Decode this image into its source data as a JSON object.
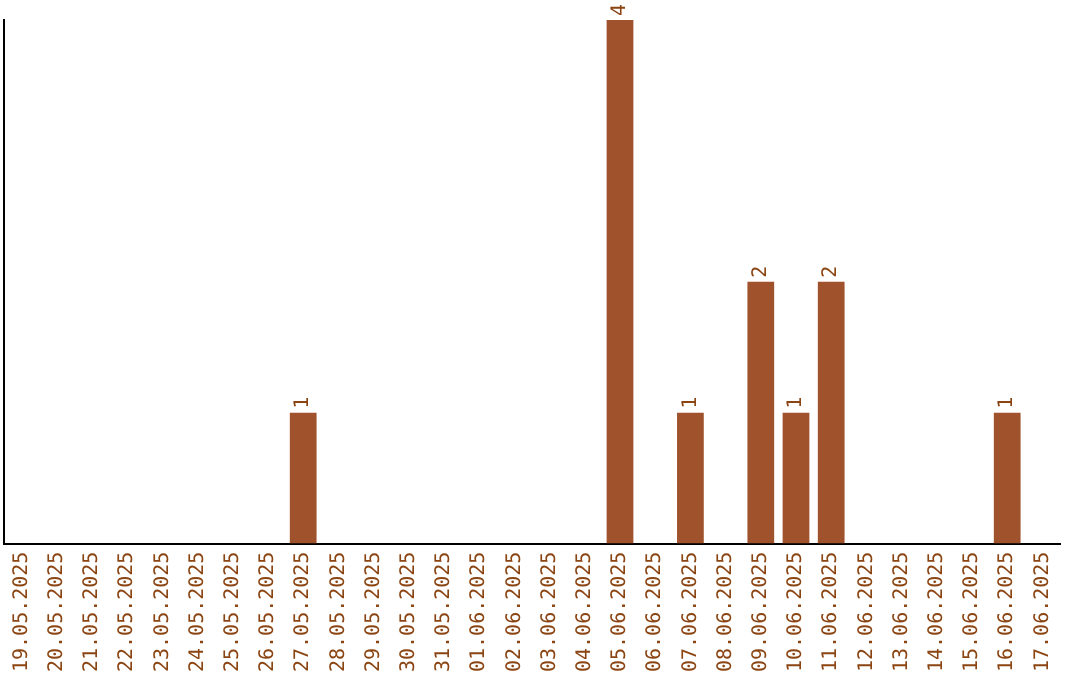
{
  "chart_data": {
    "type": "bar",
    "categories": [
      "19.05.2025",
      "20.05.2025",
      "21.05.2025",
      "22.05.2025",
      "23.05.2025",
      "24.05.2025",
      "25.05.2025",
      "26.05.2025",
      "27.05.2025",
      "28.05.2025",
      "29.05.2025",
      "30.05.2025",
      "31.05.2025",
      "01.06.2025",
      "02.06.2025",
      "03.06.2025",
      "04.06.2025",
      "05.06.2025",
      "06.06.2025",
      "07.06.2025",
      "08.06.2025",
      "09.06.2025",
      "10.06.2025",
      "11.06.2025",
      "12.06.2025",
      "13.06.2025",
      "14.06.2025",
      "15.06.2025",
      "16.06.2025",
      "17.06.2025"
    ],
    "values": [
      0,
      0,
      0,
      0,
      0,
      0,
      0,
      0,
      1,
      0,
      0,
      0,
      0,
      0,
      0,
      0,
      0,
      4,
      0,
      1,
      0,
      2,
      1,
      2,
      0,
      0,
      0,
      0,
      1,
      0
    ],
    "value_labels": [
      null,
      null,
      null,
      null,
      null,
      null,
      null,
      null,
      "1",
      null,
      null,
      null,
      null,
      null,
      null,
      null,
      null,
      "4",
      null,
      "1",
      null,
      "2",
      "1",
      "2",
      null,
      null,
      null,
      null,
      "1",
      null
    ],
    "color": "#a0522d",
    "grid": false,
    "legend": false
  }
}
